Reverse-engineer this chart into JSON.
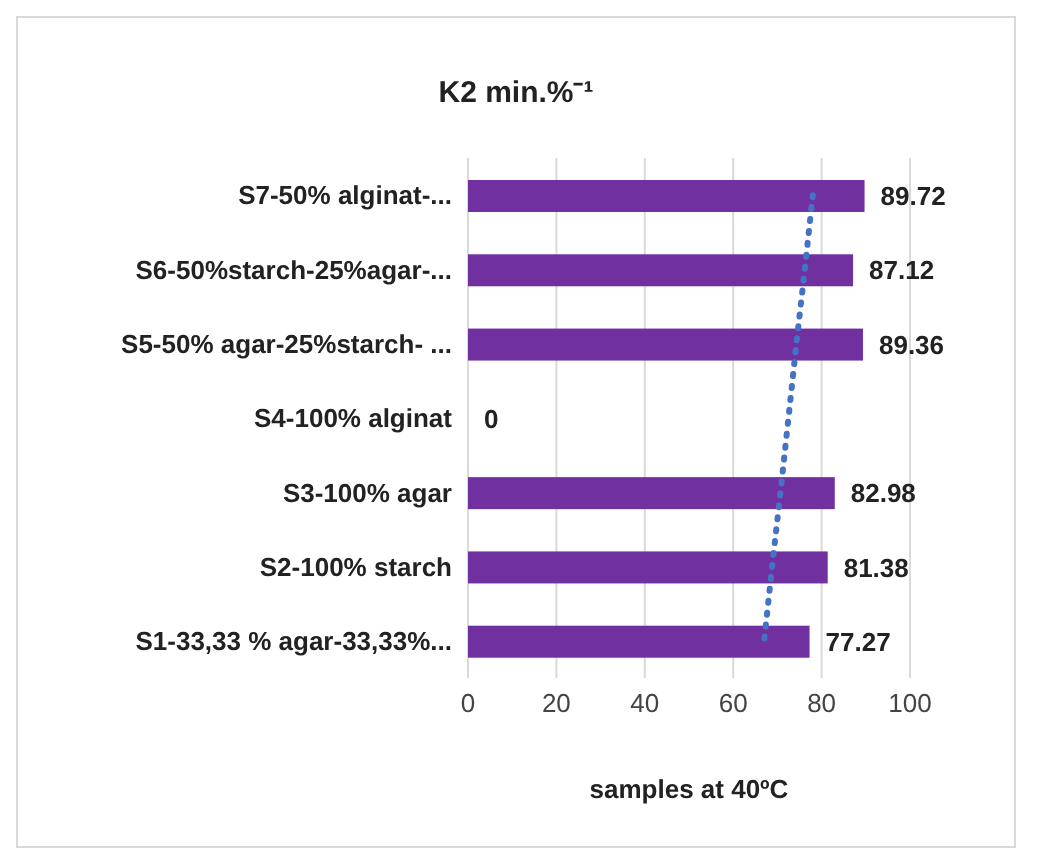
{
  "chart_data": {
    "type": "bar",
    "orientation": "horizontal",
    "title": "K2 min.%⁻¹",
    "xlabel": "samples at 40ºC",
    "categories": [
      "S7-50% alginat-...",
      "S6-50%starch-25%agar-...",
      "S5-50% agar-25%starch- ...",
      "S4-100% alginat",
      "S3-100% agar",
      "S2-100% starch",
      "S1-33,33 % agar-33,33%..."
    ],
    "series": [
      {
        "color": "#7030a0",
        "values": [
          89.72,
          87.12,
          89.36,
          0,
          82.98,
          81.38,
          77.27
        ],
        "value_labels": [
          "89.72",
          "87.12",
          "89.36",
          "0",
          "82.98",
          "81.38",
          "77.27"
        ]
      },
      {
        "type": "line",
        "color": "#4472c4",
        "line_style": "dotted",
        "values": [
          78,
          76.2,
          74.3,
          72.5,
          70.7,
          68.8,
          67
        ]
      }
    ],
    "xlim": [
      0,
      100
    ],
    "xticks": [
      0,
      20,
      40,
      60,
      80,
      100
    ],
    "grid": "x",
    "legend": false
  }
}
